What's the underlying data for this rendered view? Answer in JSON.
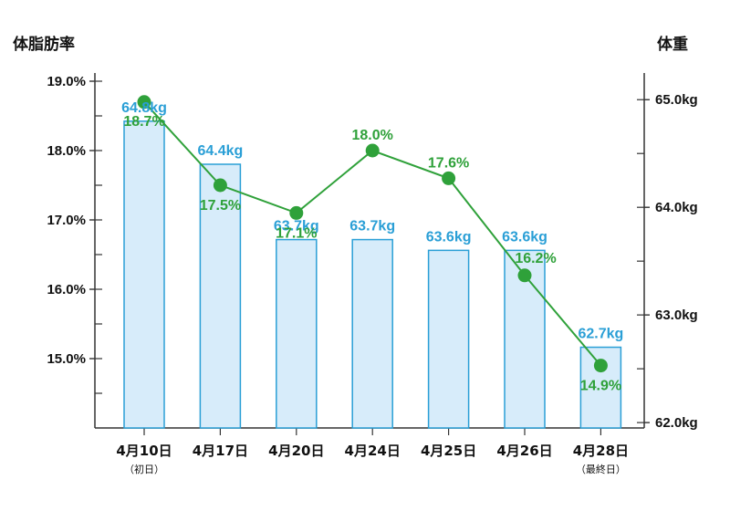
{
  "chart_data": {
    "type": "bar+line",
    "categories": [
      "4月10日",
      "4月17日",
      "4月20日",
      "4月24日",
      "4月25日",
      "4月26日",
      "4月28日"
    ],
    "category_sublabels": [
      "（初日）",
      "",
      "",
      "",
      "",
      "",
      "（最終日）"
    ],
    "left_axis": {
      "title": "体脂肪率",
      "ylim": [
        14.0,
        19.0
      ],
      "ticks": [
        15.0,
        16.0,
        17.0,
        18.0,
        19.0
      ],
      "tick_labels": [
        "15.0%",
        "16.0%",
        "17.0%",
        "18.0%",
        "19.0%"
      ]
    },
    "right_axis": {
      "title": "体重",
      "ylim": [
        61.95,
        65.18
      ],
      "ticks": [
        62.0,
        63.0,
        64.0,
        65.0
      ],
      "tick_labels": [
        "62.0kg",
        "63.0kg",
        "64.0kg",
        "65.0kg"
      ]
    },
    "series": [
      {
        "name": "体重",
        "type": "bar",
        "axis": "right",
        "values": [
          64.8,
          64.4,
          63.7,
          63.7,
          63.6,
          63.6,
          62.7
        ],
        "labels": [
          "64.8kg",
          "64.4kg",
          "63.7kg",
          "63.7kg",
          "63.6kg",
          "63.6kg",
          "62.7kg"
        ]
      },
      {
        "name": "体脂肪率",
        "type": "line",
        "axis": "left",
        "values": [
          18.7,
          17.5,
          17.1,
          18.0,
          17.6,
          16.2,
          14.9
        ],
        "labels": [
          "18.7%",
          "17.5%",
          "17.1%",
          "18.0%",
          "17.6%",
          "16.2%",
          "14.9%"
        ]
      }
    ],
    "colors": {
      "bar_fill": "#d7ecfa",
      "bar_stroke": "#2a9fd6",
      "bar_label": "#2a9fd6",
      "line": "#2fa13a",
      "line_label": "#2fa13a",
      "axis": "#333333"
    }
  }
}
